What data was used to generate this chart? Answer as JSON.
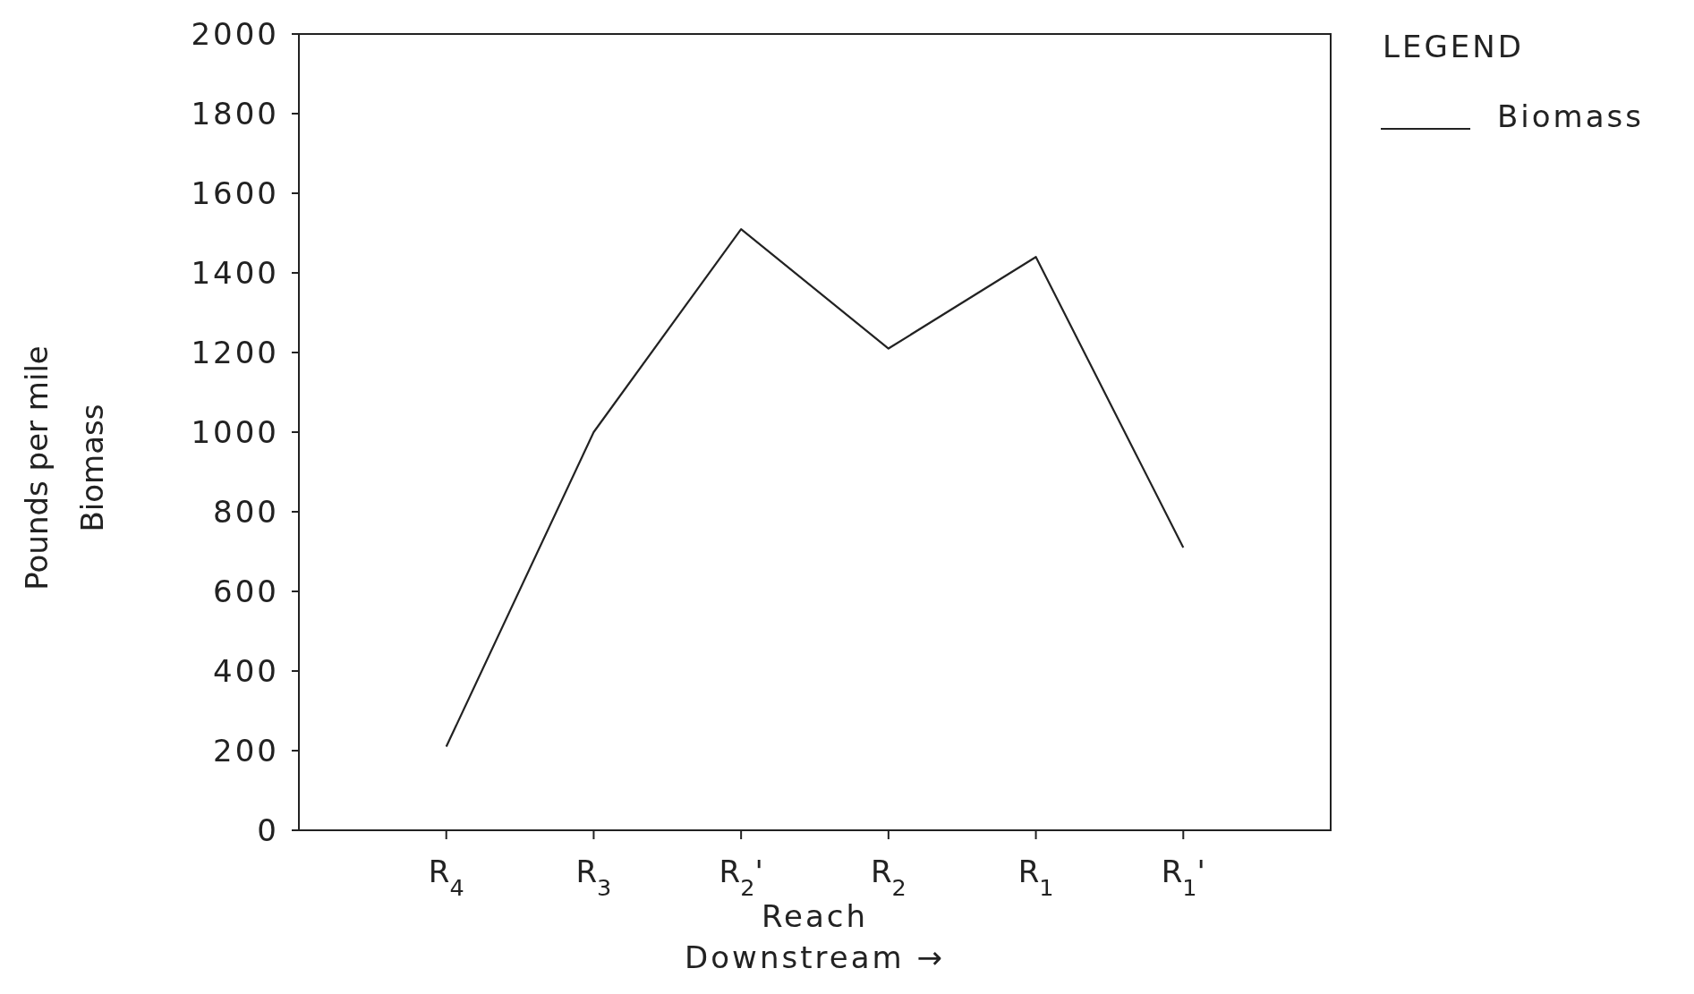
{
  "chart_data": {
    "type": "line",
    "xlabel": "Reach\nDownstream →",
    "ylabel": "Pounds per mile\nBiomass",
    "legend_title": "LEGEND",
    "legend": "top right",
    "categories": [
      "R$_{4}$",
      "R$_{3}$",
      "R$_{2}$'",
      "R$_{2}$",
      "R$_{1}$",
      "R$_{1}$'"
    ],
    "series": [
      {
        "name": "Biomass",
        "color": "#222222",
        "values": [
          210,
          1000,
          1510,
          1210,
          1440,
          710
        ]
      }
    ],
    "ylim": [
      0,
      2000
    ],
    "yticks": [
      0,
      200,
      400,
      600,
      800,
      1000,
      1200,
      1400,
      1600,
      1800,
      2000
    ],
    "grid": false,
    "marker": "none",
    "line_style": "solid"
  }
}
